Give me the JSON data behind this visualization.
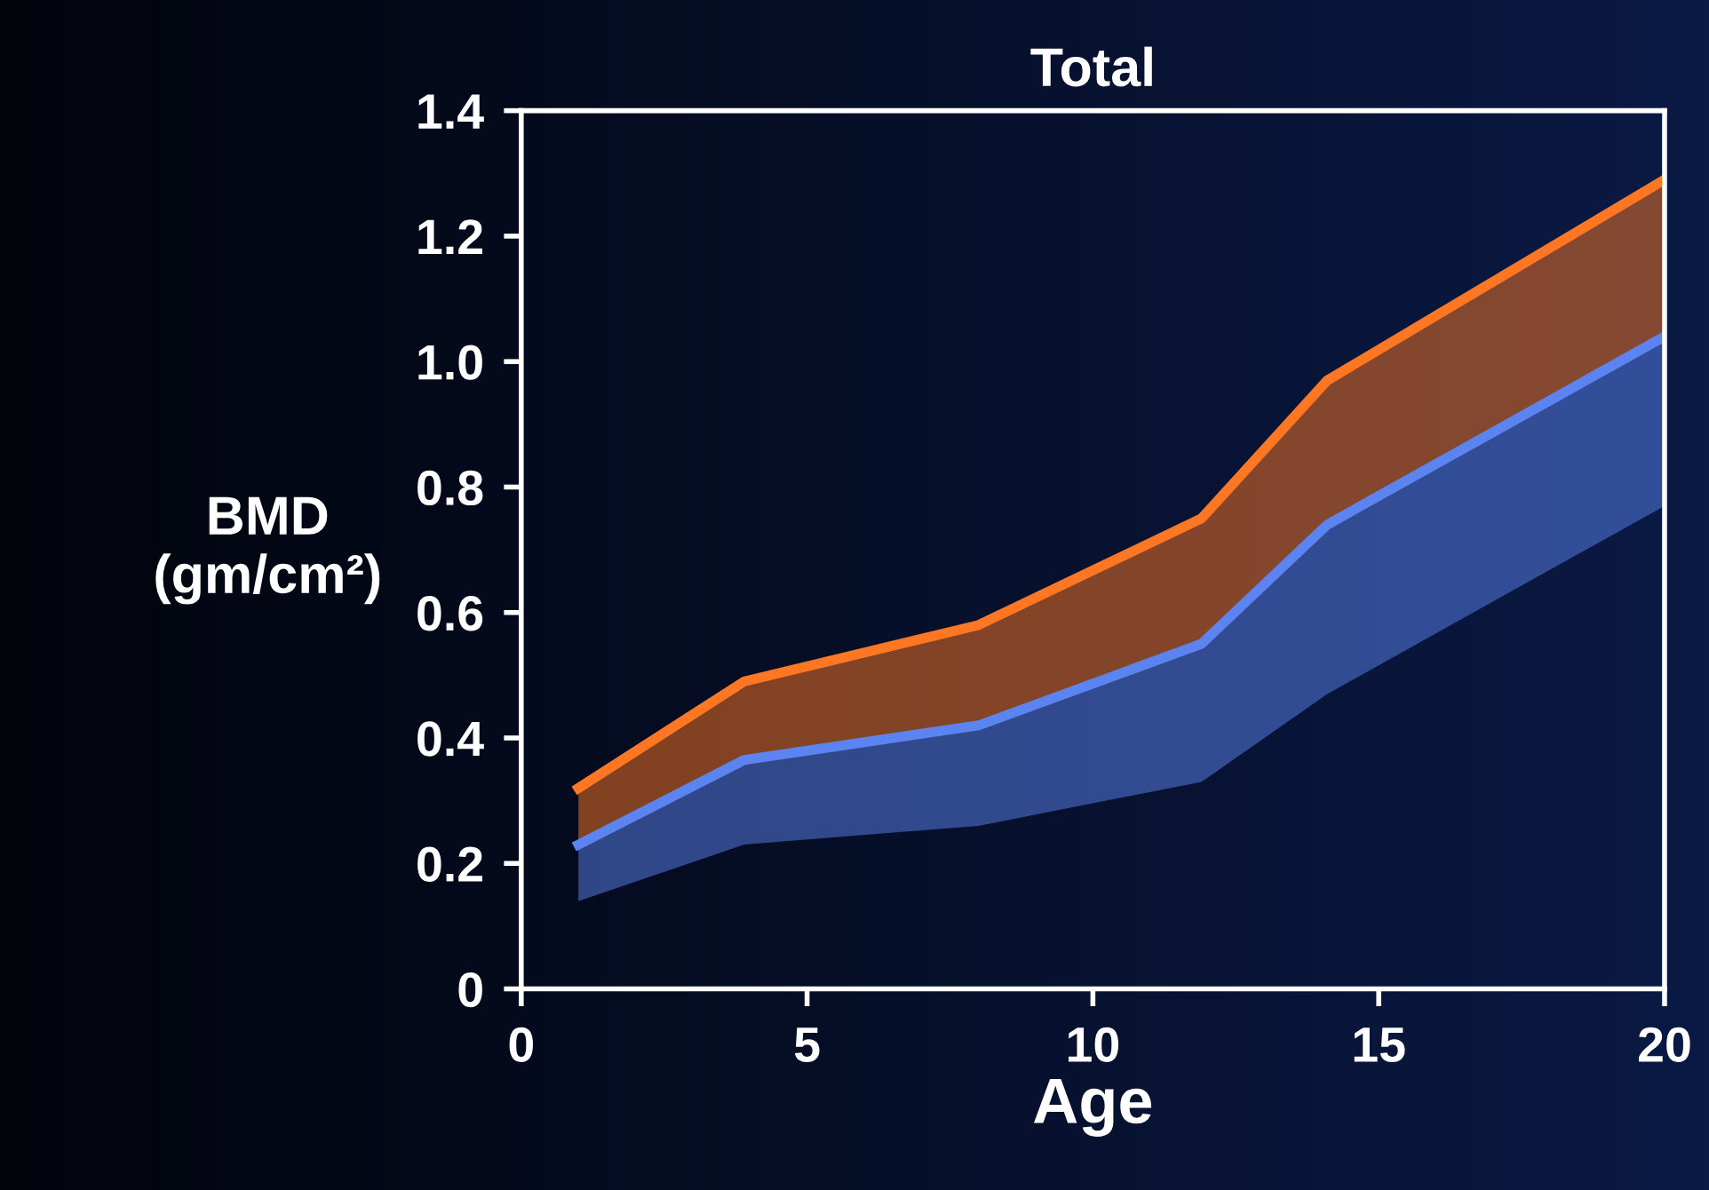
{
  "chart_data": {
    "type": "line",
    "title": "Total",
    "xlabel": "Age",
    "ylabel": "BMD\n(gm/cm²)",
    "x": [
      1,
      3.9,
      8,
      11.9,
      14.1,
      20
    ],
    "series": [
      {
        "color": "#5b84f0",
        "values": [
          0.23,
          0.365,
          0.42,
          0.55,
          0.74,
          1.04
        ],
        "lower": [
          0.14,
          0.23,
          0.26,
          0.33,
          0.47,
          0.77
        ],
        "upper": [
          0.23,
          0.365,
          0.42,
          0.55,
          0.74,
          1.04
        ]
      },
      {
        "color": "#ff7722",
        "values": [
          0.32,
          0.49,
          0.58,
          0.75,
          0.97,
          1.29
        ],
        "lower": [
          0.23,
          0.365,
          0.42,
          0.55,
          0.74,
          1.04
        ],
        "upper": [
          0.32,
          0.49,
          0.58,
          0.75,
          0.97,
          1.29
        ]
      }
    ],
    "xlim": [
      0,
      20
    ],
    "ylim": [
      0,
      1.4
    ],
    "xticks": [
      0,
      5,
      10,
      15,
      20
    ],
    "yticks": [
      0,
      {
        "value": 0.2,
        "label": "0.2"
      },
      {
        "value": 0.4,
        "label": "0.4"
      },
      {
        "value": 0.6,
        "label": "0.6"
      },
      {
        "value": 0.8,
        "label": "0.8"
      },
      {
        "value": 1.0,
        "label": "1.0"
      },
      {
        "value": 1.2,
        "label": "1.2"
      },
      {
        "value": 1.4,
        "label": "1.4"
      }
    ],
    "grid": false,
    "legend": false
  }
}
